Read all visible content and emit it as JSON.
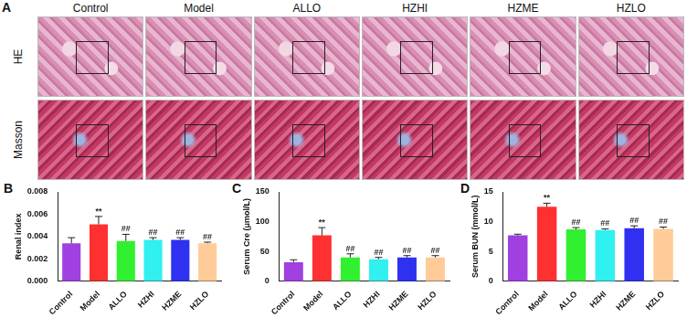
{
  "panel_a": {
    "label": "A",
    "rows": [
      "HE",
      "Masson"
    ],
    "columns": [
      "Control",
      "Model",
      "ALLO",
      "HZHI",
      "HZME",
      "HZLO"
    ]
  },
  "chart_data": [
    {
      "type": "bar",
      "panel": "B",
      "y_label": "Renal index",
      "categories": [
        "Control",
        "Model",
        "ALLO",
        "HZHI",
        "HZME",
        "HZLO"
      ],
      "values": [
        0.0034,
        0.0051,
        0.0036,
        0.0037,
        0.0037,
        0.0034
      ],
      "errors": [
        0.0005,
        0.0007,
        0.0006,
        0.0002,
        0.0002,
        0.0001
      ],
      "annotations": [
        null,
        "**",
        "##",
        "##",
        "##",
        "##"
      ],
      "colors": [
        "#a040e0",
        "#ff3030",
        "#30f030",
        "#30f0f0",
        "#3030f0",
        "#ffcc99"
      ],
      "ylim": [
        0,
        0.008
      ],
      "yticks": [
        {
          "value": 0,
          "label": "0.000"
        },
        {
          "value": 0.002,
          "label": "0.002"
        },
        {
          "value": 0.004,
          "label": "0.004"
        },
        {
          "value": 0.006,
          "label": "0.006"
        },
        {
          "value": 0.008,
          "label": "0.008"
        }
      ],
      "grid": false
    },
    {
      "type": "bar",
      "panel": "C",
      "y_label": "Serum Cre (μmol/L)",
      "categories": [
        "Control",
        "Model",
        "ALLO",
        "HZHI",
        "HZME",
        "HZLO"
      ],
      "values": [
        32,
        77,
        40,
        37,
        40,
        40
      ],
      "errors": [
        4,
        13,
        6,
        3,
        3,
        3
      ],
      "annotations": [
        null,
        "**",
        "##",
        "##",
        "##",
        "##"
      ],
      "colors": [
        "#a040e0",
        "#ff3030",
        "#30f030",
        "#30f0f0",
        "#3030f0",
        "#ffcc99"
      ],
      "ylim": [
        0,
        150
      ],
      "yticks": [
        0,
        50,
        100,
        150
      ],
      "grid": false
    },
    {
      "type": "bar",
      "panel": "D",
      "y_label": "Serum BUN (mmol/L)",
      "categories": [
        "Control",
        "Model",
        "ALLO",
        "HZHI",
        "HZME",
        "HZLO"
      ],
      "values": [
        7.7,
        12.5,
        8.7,
        8.6,
        8.9,
        8.8
      ],
      "errors": [
        0.2,
        0.6,
        0.3,
        0.2,
        0.4,
        0.3
      ],
      "annotations": [
        null,
        "**",
        "##",
        "##",
        "##",
        "##"
      ],
      "colors": [
        "#a040e0",
        "#ff3030",
        "#30f030",
        "#30f0f0",
        "#3030f0",
        "#ffcc99"
      ],
      "ylim": [
        0,
        15
      ],
      "yticks": [
        0,
        5,
        10,
        15
      ],
      "grid": false
    }
  ]
}
